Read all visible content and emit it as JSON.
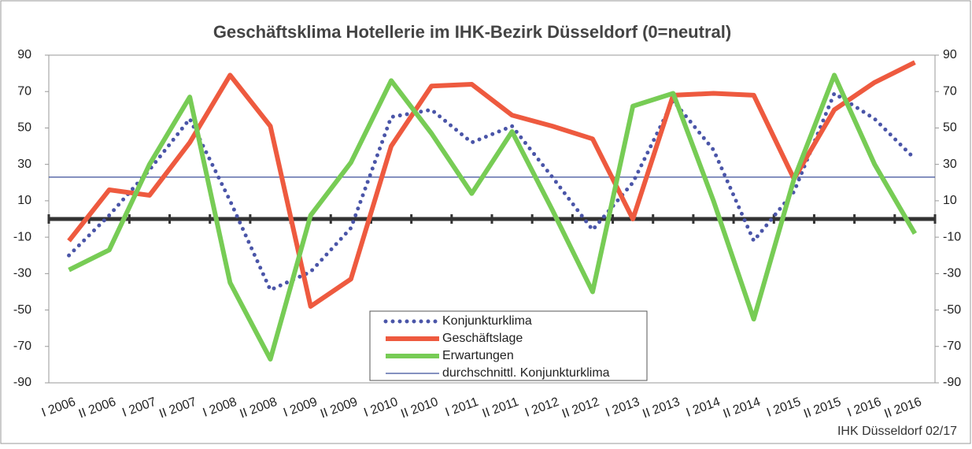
{
  "chart_data": {
    "type": "line",
    "title": "Geschäftsklima Hotellerie im IHK-Bezirk Düsseldorf (0=neutral)",
    "categories": [
      "I 2006",
      "II 2006",
      "I 2007",
      "II 2007",
      "I 2008",
      "II 2008",
      "I 2009",
      "II 2009",
      "I 2010",
      "II 2010",
      "I 2011",
      "II 2011",
      "I 2012",
      "II 2012",
      "I 2013",
      "II 2013",
      "I 2014",
      "II 2014",
      "I 2015",
      "II 2015",
      "I 2016",
      "II 2016"
    ],
    "series": [
      {
        "name": "Konjunkturklima",
        "color": "#4a55a8",
        "style": "dotted",
        "values": [
          -20,
          2,
          27,
          55,
          10,
          -39,
          -29,
          -5,
          56,
          60,
          42,
          51,
          23,
          -6,
          20,
          65,
          38,
          -12,
          15,
          69,
          55,
          33
        ]
      },
      {
        "name": "Geschäftslage",
        "color": "#ee5a3f",
        "style": "solid",
        "values": [
          -12,
          16,
          13,
          42,
          79,
          51,
          -48,
          -33,
          40,
          73,
          74,
          57,
          51,
          44,
          0,
          68,
          69,
          68,
          22,
          60,
          75,
          86
        ]
      },
      {
        "name": "Erwartungen",
        "color": "#77cc55",
        "style": "solid",
        "values": [
          -28,
          -17,
          30,
          67,
          -35,
          -77,
          2,
          31,
          76,
          47,
          14,
          48,
          5,
          -40,
          62,
          69,
          10,
          -55,
          22,
          79,
          30,
          -8
        ]
      }
    ],
    "reference_line": {
      "name": "durchschnittl. Konjunkturklima",
      "value": 23,
      "color": "#3b4f9a"
    },
    "ylim": [
      -90,
      90
    ],
    "yticks": [
      -90,
      -70,
      -50,
      -30,
      -10,
      10,
      30,
      50,
      70,
      90
    ],
    "y2lim": [
      -90,
      90
    ],
    "y2ticks": [
      -90,
      -70,
      -50,
      -30,
      -10,
      10,
      30,
      50,
      70,
      90
    ],
    "zero_line": 0,
    "source": "IHK Düsseldorf 02/17"
  }
}
